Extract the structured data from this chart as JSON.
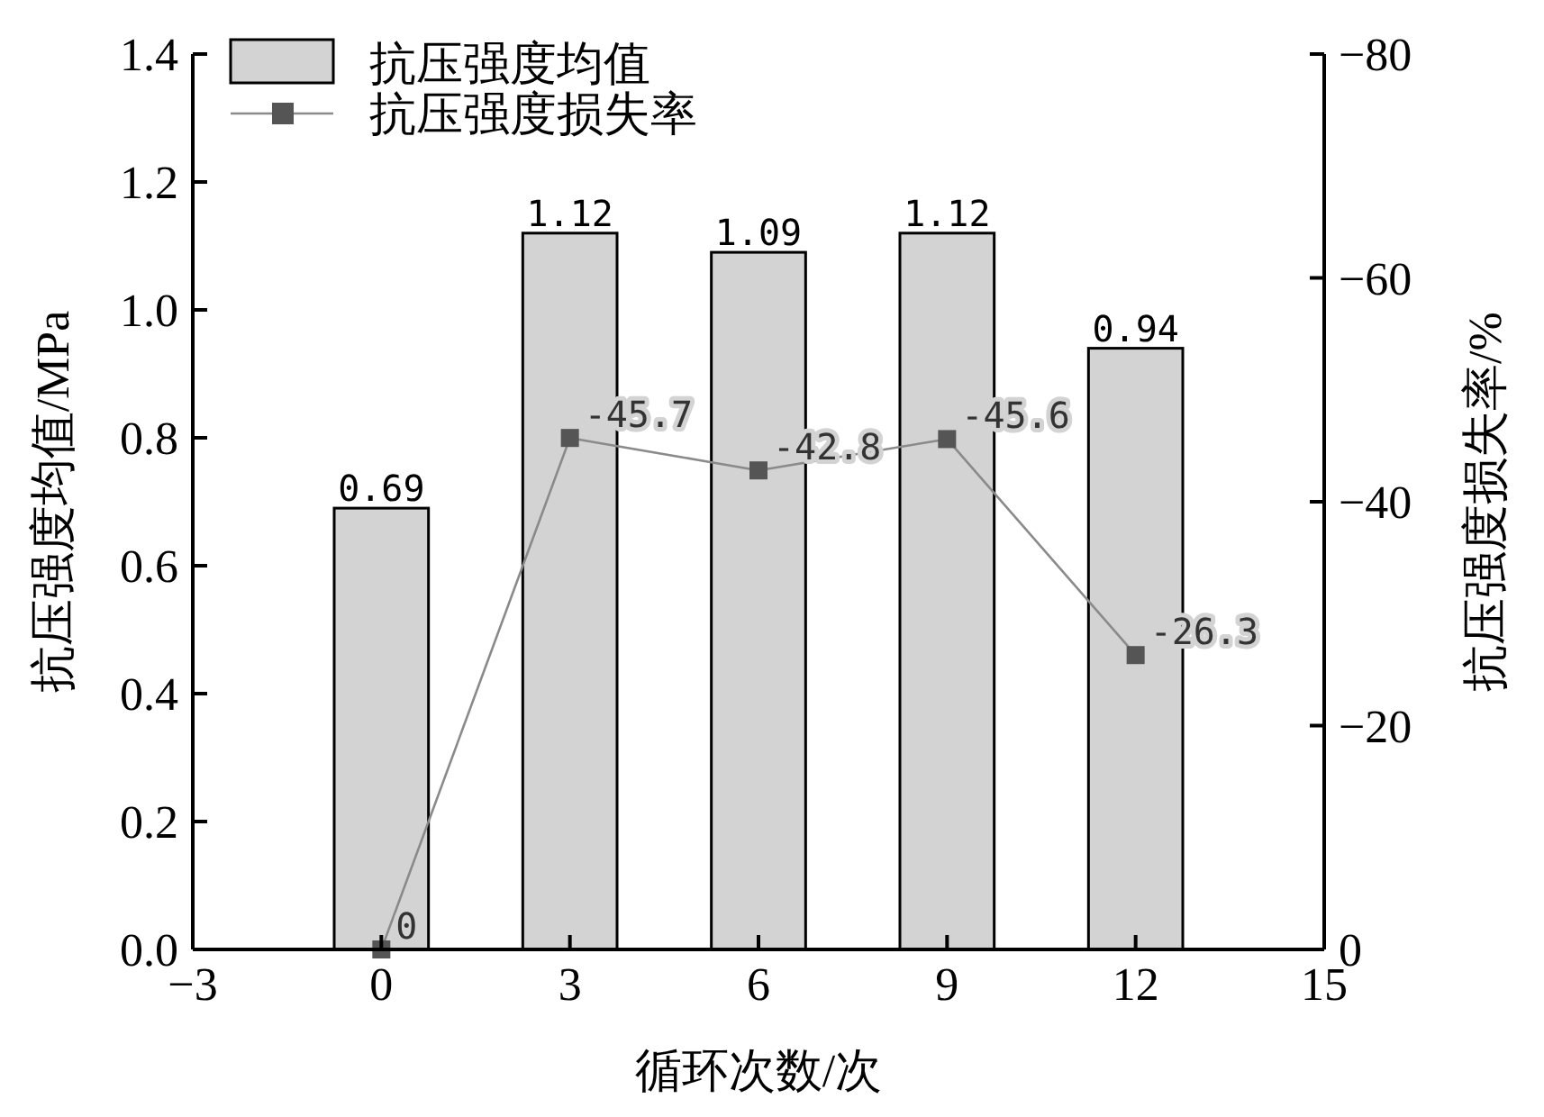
{
  "chart_data": {
    "type": "bar",
    "xlabel": "循环次数/次",
    "ylabel": "抗压强度均值/MPa",
    "y2label": "抗压强度损失率/%",
    "x": [
      0,
      3,
      6,
      9,
      12
    ],
    "series": [
      {
        "name": "抗压强度均值",
        "color": "#d3d3d3",
        "values": [
          0.69,
          1.12,
          1.09,
          1.12,
          0.94
        ]
      },
      {
        "name": "抗压强度损失率",
        "type": "line",
        "axis": "y2",
        "color": "#555555",
        "marker": "square",
        "values": [
          0,
          -45.7,
          -42.8,
          -45.6,
          -26.3
        ],
        "value_labels": [
          "0",
          "-45.7",
          "-42.8",
          "-45.6",
          "-26.3"
        ]
      }
    ],
    "data_labels": true,
    "xlim": [
      -3,
      15
    ],
    "xticks": [
      -3,
      0,
      3,
      6,
      9,
      12,
      15
    ],
    "ylim": [
      0,
      1.4
    ],
    "yticks": [
      {
        "value": 0,
        "label": "0.0"
      },
      0.2,
      0.4,
      0.6,
      0.8,
      {
        "value": 1,
        "label": "1.0"
      },
      1.2,
      1.4
    ],
    "y2lim": [
      0,
      -80
    ],
    "y2ticks": [
      0,
      {
        "value": -20,
        "label": "−20"
      },
      {
        "value": -40,
        "label": "−40"
      },
      {
        "value": -60,
        "label": "−60"
      },
      {
        "value": -80,
        "label": "−80"
      }
    ],
    "legend": "top left"
  }
}
